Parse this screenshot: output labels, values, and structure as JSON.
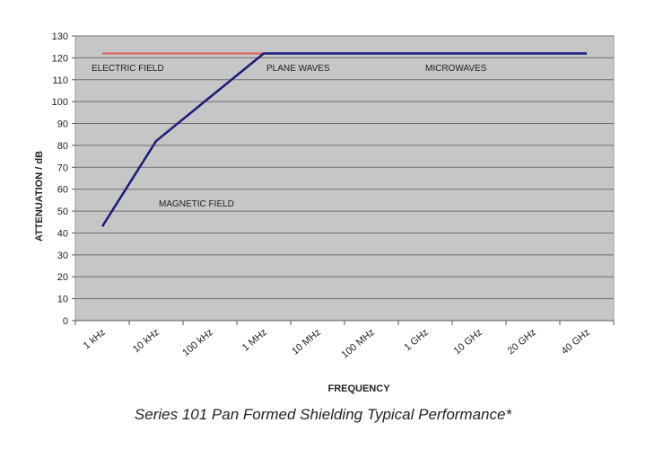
{
  "chart_data": {
    "type": "line",
    "title": "",
    "caption": "Series 101 Pan Formed Shielding Typical Performance*",
    "xlabel": "FREQUENCY",
    "ylabel": "ATTENUATION / dB",
    "categories": [
      "1 kHz",
      "10 kHz",
      "100 kHz",
      "1 MHz",
      "10 MHz",
      "100 MHz",
      "1 GHz",
      "10 GHz",
      "20 GHz",
      "40 GHz"
    ],
    "ylim": [
      0,
      130
    ],
    "yticks": [
      0,
      10,
      20,
      30,
      40,
      50,
      60,
      70,
      80,
      90,
      100,
      110,
      120,
      130
    ],
    "grid": true,
    "series": [
      {
        "name": "Magnetic field",
        "color": "#1a1a7a",
        "values": [
          43,
          82,
          102,
          122,
          122,
          122,
          122,
          122,
          122,
          122
        ]
      },
      {
        "name": "Electric field",
        "color": "#e06060",
        "values": [
          122,
          122,
          122,
          122,
          122,
          122,
          122,
          122,
          122,
          122
        ]
      }
    ],
    "annotations": [
      {
        "text": "ELECTRIC FIELD",
        "x": 0.3,
        "y": 114
      },
      {
        "text": "PLANE WAVES",
        "x": 3.55,
        "y": 114
      },
      {
        "text": "MICROWAVES",
        "x": 6.5,
        "y": 114
      },
      {
        "text": "MAGNETIC FIELD",
        "x": 1.55,
        "y": 52
      }
    ]
  }
}
